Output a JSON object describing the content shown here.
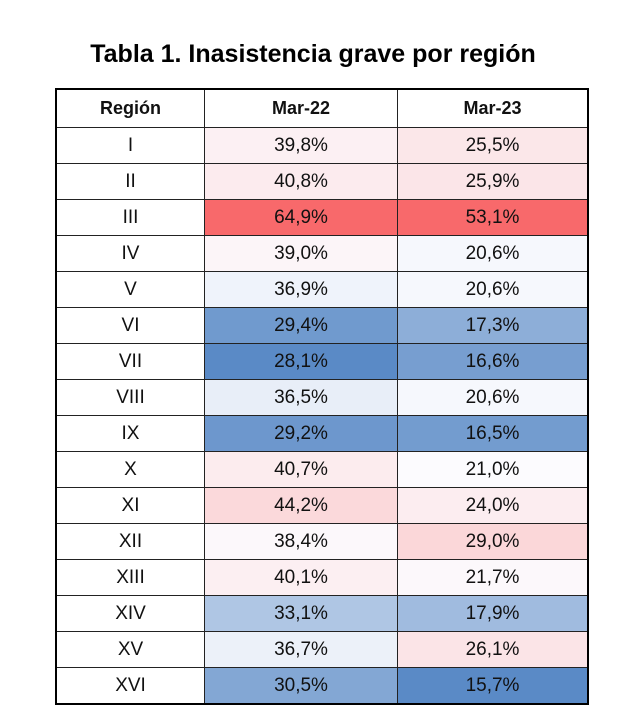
{
  "chart_data": {
    "type": "heatmap",
    "title": "Tabla 1. Inasistencia grave por región",
    "columns": [
      "Región",
      "Mar-22",
      "Mar-23"
    ],
    "rows": [
      {
        "region": "I",
        "mar22": "39,8%",
        "mar23": "25,5%",
        "v22": 39.8,
        "v23": 25.5
      },
      {
        "region": "II",
        "mar22": "40,8%",
        "mar23": "25,9%",
        "v22": 40.8,
        "v23": 25.9
      },
      {
        "region": "III",
        "mar22": "64,9%",
        "mar23": "53,1%",
        "v22": 64.9,
        "v23": 53.1
      },
      {
        "region": "IV",
        "mar22": "39,0%",
        "mar23": "20,6%",
        "v22": 39.0,
        "v23": 20.6
      },
      {
        "region": "V",
        "mar22": "36,9%",
        "mar23": "20,6%",
        "v22": 36.9,
        "v23": 20.6
      },
      {
        "region": "VI",
        "mar22": "29,4%",
        "mar23": "17,3%",
        "v22": 29.4,
        "v23": 17.3
      },
      {
        "region": "VII",
        "mar22": "28,1%",
        "mar23": "16,6%",
        "v22": 28.1,
        "v23": 16.6
      },
      {
        "region": "VIII",
        "mar22": "36,5%",
        "mar23": "20,6%",
        "v22": 36.5,
        "v23": 20.6
      },
      {
        "region": "IX",
        "mar22": "29,2%",
        "mar23": "16,5%",
        "v22": 29.2,
        "v23": 16.5
      },
      {
        "region": "X",
        "mar22": "40,7%",
        "mar23": "21,0%",
        "v22": 40.7,
        "v23": 21.0
      },
      {
        "region": "XI",
        "mar22": "44,2%",
        "mar23": "24,0%",
        "v22": 44.2,
        "v23": 24.0
      },
      {
        "region": "XII",
        "mar22": "38,4%",
        "mar23": "29,0%",
        "v22": 38.4,
        "v23": 29.0
      },
      {
        "region": "XIII",
        "mar22": "40,1%",
        "mar23": "21,7%",
        "v22": 40.1,
        "v23": 21.7
      },
      {
        "region": "XIV",
        "mar22": "33,1%",
        "mar23": "17,9%",
        "v22": 33.1,
        "v23": 17.9
      },
      {
        "region": "XV",
        "mar22": "36,7%",
        "mar23": "26,1%",
        "v22": 36.7,
        "v23": 26.1
      },
      {
        "region": "XVI",
        "mar22": "30,5%",
        "mar23": "15,7%",
        "v22": 30.5,
        "v23": 15.7
      }
    ],
    "color_scale": {
      "low": "#5A8AC6",
      "mid": "#FCFCFF",
      "high": "#F8696B"
    }
  }
}
